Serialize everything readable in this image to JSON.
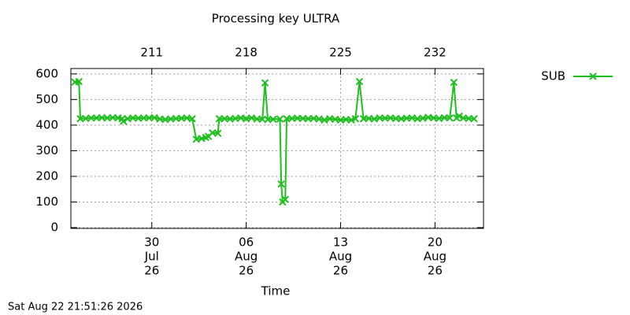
{
  "chart_data": {
    "type": "line",
    "title": "Processing key ULTRA",
    "xlabel": "Time",
    "timestamp": "Sat Aug 22 21:51:26 2026",
    "xlim": [
      205.0,
      235.6
    ],
    "ylim": [
      -3,
      621
    ],
    "yticks": [
      0,
      100,
      200,
      300,
      400,
      500,
      600
    ],
    "xticks": [
      {
        "value": 211,
        "label": [
          "30",
          "Jul",
          "26"
        ]
      },
      {
        "value": 218,
        "label": [
          "06",
          "Aug",
          "26"
        ]
      },
      {
        "value": 225,
        "label": [
          "13",
          "Aug",
          "26"
        ]
      },
      {
        "value": 232,
        "label": [
          "20",
          "Aug",
          "26"
        ]
      }
    ],
    "x2ticks": [
      211,
      218,
      225,
      232
    ],
    "grid": true,
    "legend": "outside-right",
    "series": [
      {
        "name": "SUB",
        "color": "#1fbf1f",
        "x": [
          205.3,
          205.6,
          205.7,
          206.1,
          206.5,
          206.9,
          207.3,
          207.7,
          208.1,
          208.5,
          208.8,
          208.9,
          209.2,
          209.6,
          210.0,
          210.4,
          210.8,
          211.2,
          211.6,
          212.0,
          212.4,
          212.8,
          213.2,
          213.6,
          214.0,
          214.3,
          214.7,
          215.0,
          215.2,
          215.5,
          215.9,
          216.0,
          216.4,
          216.8,
          217.2,
          217.6,
          218.0,
          218.4,
          218.8,
          219.2,
          219.4,
          219.6,
          220.0,
          220.5,
          220.6,
          220.7,
          220.9,
          221.0,
          221.4,
          221.8,
          222.2,
          222.6,
          223.0,
          223.4,
          223.8,
          224.2,
          224.6,
          225.0,
          225.4,
          225.8,
          226.1,
          226.4,
          226.7,
          227.1,
          227.5,
          227.9,
          228.3,
          228.7,
          229.1,
          229.5,
          229.9,
          230.3,
          230.7,
          231.1,
          231.5,
          231.9,
          232.3,
          232.7,
          233.1,
          233.4,
          233.6,
          233.8,
          234.1,
          234.5,
          234.9
        ],
        "values": [
          568,
          570,
          425,
          426,
          428,
          428,
          429,
          428,
          429,
          428,
          425,
          415,
          425,
          428,
          427,
          428,
          428,
          429,
          424,
          422,
          424,
          426,
          427,
          428,
          425,
          345,
          348,
          352,
          356,
          370,
          368,
          425,
          425,
          424,
          426,
          428,
          425,
          428,
          424,
          423,
          565,
          422,
          423,
          424,
          170,
          100,
          110,
          425,
          426,
          427,
          426,
          425,
          426,
          424,
          420,
          425,
          423,
          420,
          422,
          420,
          425,
          570,
          425,
          426,
          424,
          428,
          427,
          428,
          426,
          425,
          427,
          428,
          425,
          427,
          430,
          428,
          426,
          429,
          428,
          567,
          428,
          435,
          428,
          426,
          425
        ]
      }
    ]
  }
}
